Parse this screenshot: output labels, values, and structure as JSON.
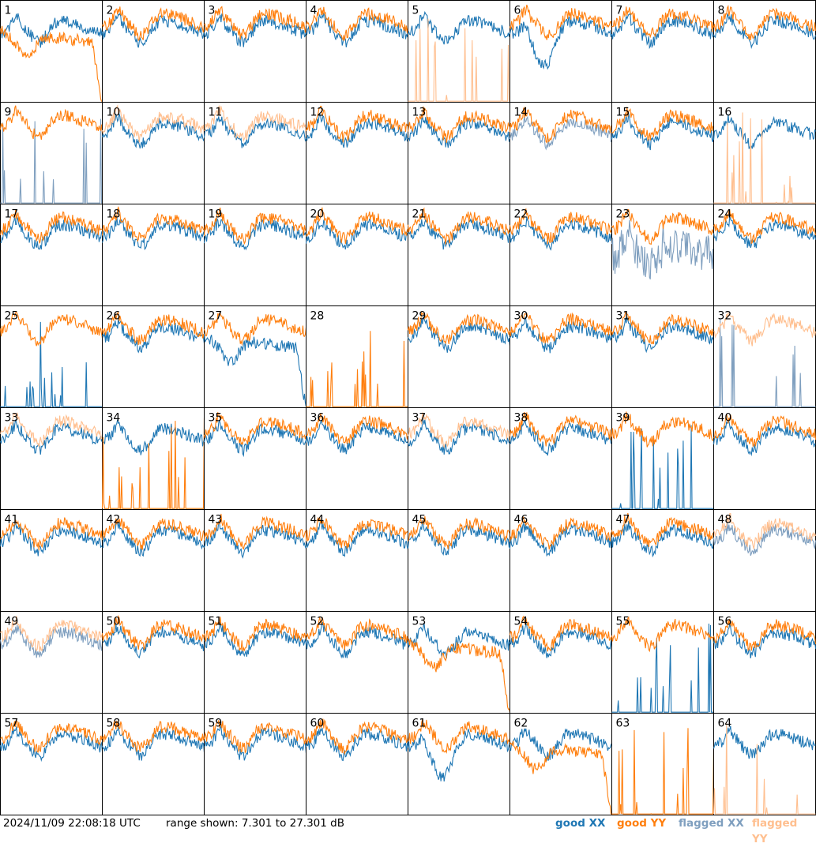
{
  "footer": {
    "timestamp": "2024/11/09 22:08:18 UTC",
    "range_text": "range shown: 7.301 to 27.301 dB"
  },
  "legend": [
    {
      "label": "good XX",
      "color": "#1f77b4"
    },
    {
      "label": "good YY",
      "color": "#ff7f0e"
    },
    {
      "label": "flagged XX",
      "color": "#7f9fbf"
    },
    {
      "label": "flagged YY",
      "color": "#ffbf8f"
    }
  ],
  "chart_data": {
    "type": "line",
    "x_unit": "channel",
    "ylim": [
      7.301,
      27.301
    ],
    "y_unit": "dB",
    "grid": false,
    "legend_position": "bottom",
    "series_names": [
      "good XX",
      "good YY",
      "flagged XX",
      "flagged YY"
    ],
    "panels": [
      {
        "label": "1",
        "xx": "good",
        "yy": "good",
        "yy_style": "droop",
        "xx_style": "normal"
      },
      {
        "label": "2",
        "xx": "good",
        "yy": "good"
      },
      {
        "label": "3",
        "xx": "good",
        "yy": "good"
      },
      {
        "label": "4",
        "xx": "good",
        "yy": "good"
      },
      {
        "label": "5",
        "xx": "good",
        "yy": "flagged",
        "yy_style": "spikes"
      },
      {
        "label": "6",
        "xx": "good",
        "yy": "good",
        "xx_style": "low"
      },
      {
        "label": "7",
        "xx": "good",
        "yy": "good"
      },
      {
        "label": "8",
        "xx": "good",
        "yy": "good"
      },
      {
        "label": "9",
        "xx": "flagged",
        "yy": "good",
        "xx_style": "spikes"
      },
      {
        "label": "10",
        "xx": "good",
        "yy": "flagged"
      },
      {
        "label": "11",
        "xx": "good",
        "yy": "flagged"
      },
      {
        "label": "12",
        "xx": "good",
        "yy": "good"
      },
      {
        "label": "13",
        "xx": "good",
        "yy": "good"
      },
      {
        "label": "14",
        "xx": "flagged",
        "yy": "good"
      },
      {
        "label": "15",
        "xx": "good",
        "yy": "good"
      },
      {
        "label": "16",
        "xx": "good",
        "yy": "flagged",
        "yy_style": "spikes"
      },
      {
        "label": "17",
        "xx": "good",
        "yy": "good"
      },
      {
        "label": "18",
        "xx": "good",
        "yy": "good"
      },
      {
        "label": "19",
        "xx": "good",
        "yy": "good"
      },
      {
        "label": "20",
        "xx": "good",
        "yy": "good"
      },
      {
        "label": "21",
        "xx": "good",
        "yy": "good"
      },
      {
        "label": "22",
        "xx": "good",
        "yy": "good"
      },
      {
        "label": "23",
        "xx": "flagged",
        "yy": "good",
        "xx_style": "noisy_low"
      },
      {
        "label": "24",
        "xx": "good",
        "yy": "good"
      },
      {
        "label": "25",
        "xx": "good",
        "yy": "good",
        "xx_style": "spikes"
      },
      {
        "label": "26",
        "xx": "good",
        "yy": "good"
      },
      {
        "label": "27",
        "xx": "good",
        "yy": "good",
        "xx_style": "droop"
      },
      {
        "label": "28",
        "xx": "good",
        "yy": "good",
        "xx_style": "none",
        "yy_style": "spikes"
      },
      {
        "label": "29",
        "xx": "good",
        "yy": "good"
      },
      {
        "label": "30",
        "xx": "good",
        "yy": "good"
      },
      {
        "label": "31",
        "xx": "good",
        "yy": "good"
      },
      {
        "label": "32",
        "xx": "flagged",
        "yy": "flagged",
        "xx_style": "spikes"
      },
      {
        "label": "33",
        "xx": "good",
        "yy": "flagged"
      },
      {
        "label": "34",
        "xx": "good",
        "yy": "good",
        "yy_style": "spikes"
      },
      {
        "label": "35",
        "xx": "good",
        "yy": "good"
      },
      {
        "label": "36",
        "xx": "good",
        "yy": "good"
      },
      {
        "label": "37",
        "xx": "good",
        "yy": "flagged"
      },
      {
        "label": "38",
        "xx": "good",
        "yy": "good"
      },
      {
        "label": "39",
        "xx": "good",
        "yy": "good",
        "xx_style": "spikes"
      },
      {
        "label": "40",
        "xx": "good",
        "yy": "good"
      },
      {
        "label": "41",
        "xx": "good",
        "yy": "good"
      },
      {
        "label": "42",
        "xx": "good",
        "yy": "good"
      },
      {
        "label": "43",
        "xx": "good",
        "yy": "good"
      },
      {
        "label": "44",
        "xx": "good",
        "yy": "good"
      },
      {
        "label": "45",
        "xx": "good",
        "yy": "good"
      },
      {
        "label": "46",
        "xx": "good",
        "yy": "good"
      },
      {
        "label": "47",
        "xx": "good",
        "yy": "good"
      },
      {
        "label": "48",
        "xx": "flagged",
        "yy": "flagged"
      },
      {
        "label": "49",
        "xx": "flagged",
        "yy": "flagged"
      },
      {
        "label": "50",
        "xx": "good",
        "yy": "good"
      },
      {
        "label": "51",
        "xx": "good",
        "yy": "good"
      },
      {
        "label": "52",
        "xx": "good",
        "yy": "good"
      },
      {
        "label": "53",
        "xx": "good",
        "yy": "good",
        "yy_style": "droop"
      },
      {
        "label": "54",
        "xx": "good",
        "yy": "good"
      },
      {
        "label": "55",
        "xx": "good",
        "yy": "good",
        "xx_style": "spikes"
      },
      {
        "label": "56",
        "xx": "good",
        "yy": "good"
      },
      {
        "label": "57",
        "xx": "good",
        "yy": "good"
      },
      {
        "label": "58",
        "xx": "good",
        "yy": "good"
      },
      {
        "label": "59",
        "xx": "good",
        "yy": "good"
      },
      {
        "label": "60",
        "xx": "good",
        "yy": "good"
      },
      {
        "label": "61",
        "xx": "good",
        "yy": "good",
        "xx_style": "low"
      },
      {
        "label": "62",
        "xx": "good",
        "yy": "good",
        "yy_style": "droop"
      },
      {
        "label": "63",
        "xx": "flagged",
        "yy": "good",
        "xx_style": "none",
        "yy_style": "spikes"
      },
      {
        "label": "64",
        "xx": "good",
        "yy": "flagged",
        "yy_style": "spikes"
      }
    ]
  }
}
